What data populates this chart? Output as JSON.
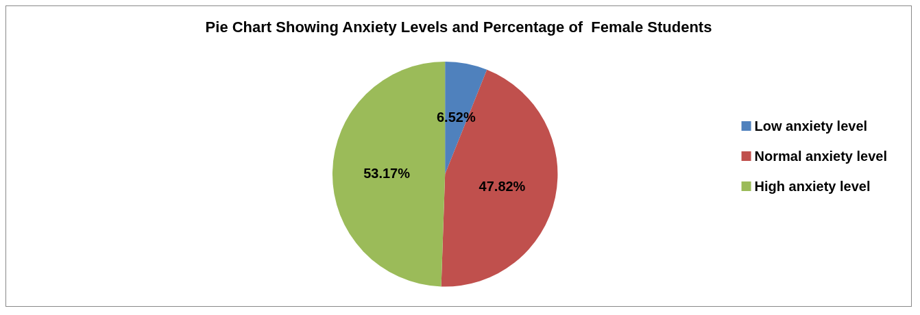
{
  "chart_data": {
    "type": "pie",
    "title": "Pie Chart Showing Anxiety Levels and Percentage of  Female Students",
    "categories": [
      "Low anxiety level",
      "Normal anxiety level",
      "High anxiety level"
    ],
    "values": [
      6.52,
      47.82,
      53.17
    ],
    "colors": [
      "#4f81bd",
      "#c0504d",
      "#9bbb59"
    ],
    "value_labels": [
      "6.52%",
      "47.82%",
      "53.17%"
    ],
    "legend": "right"
  }
}
